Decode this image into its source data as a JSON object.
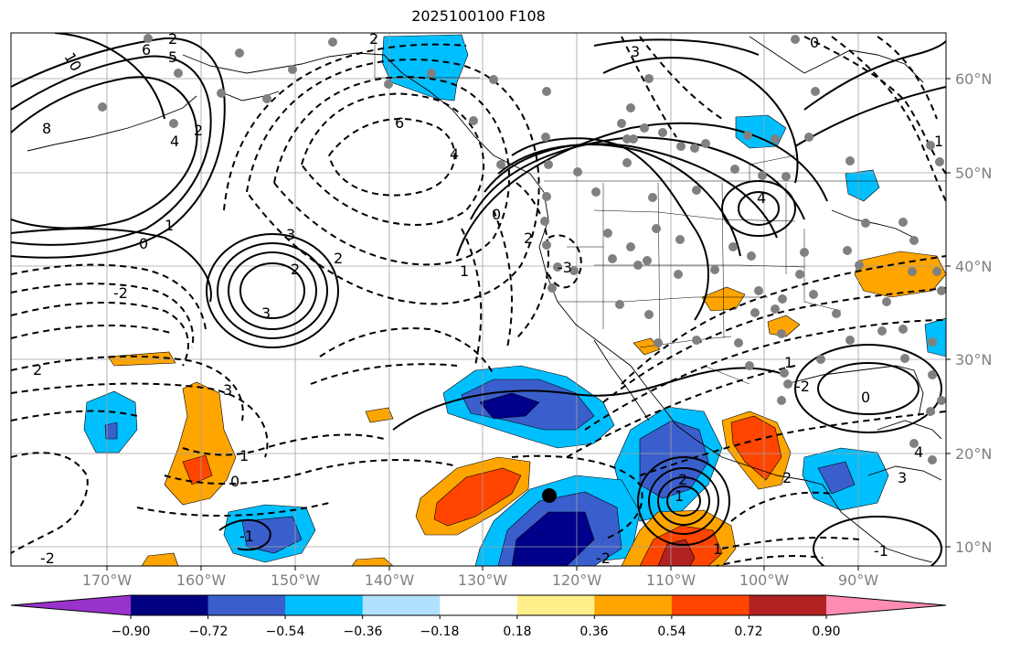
{
  "title": "2025100100 F108",
  "lat_labels": [
    "60°N",
    "50°N",
    "40°N",
    "30°N",
    "20°N",
    "10°N"
  ],
  "lon_labels": [
    "170°W",
    "160°W",
    "150°W",
    "140°W",
    "130°W",
    "120°W",
    "110°W",
    "100°W",
    "90°W"
  ],
  "contour_labels": [
    "10",
    "8",
    "6",
    "5",
    "3",
    "4",
    "2",
    "0",
    "-2",
    "1",
    "2",
    "3",
    "2",
    "6",
    "4",
    "2",
    "2",
    "1",
    "-3",
    "0",
    "2",
    "3",
    "4",
    "2",
    "3",
    "1",
    "0",
    "-1",
    "-2",
    "2",
    "1",
    "0",
    "-2",
    "1",
    "2",
    "3",
    "4",
    "-1",
    "1",
    "-2",
    "0",
    "1",
    "0",
    "2"
  ],
  "colorbar": {
    "tick_labels": [
      "−0.90",
      "−0.72",
      "−0.54",
      "−0.36",
      "−0.18",
      "0.18",
      "0.36",
      "0.54",
      "0.72",
      "0.90"
    ],
    "colors": [
      "#9933cc",
      "#000080",
      "#3a5fcd",
      "#00bfff",
      "#b0e2ff",
      "#ffffff",
      "#fff08c",
      "#ffa500",
      "#ff4500",
      "#b22222",
      "#ff8cb4"
    ]
  },
  "shading_colors": {
    "dark_blue": "#00008b",
    "mid_blue": "#3a5fcd",
    "light_blue": "#00bfff",
    "orange": "#ffa500",
    "red_orange": "#ff4500",
    "dark_red": "#b22222"
  },
  "marker": {
    "label": "storm-center",
    "lon": -122.5,
    "lat": 15.5
  }
}
